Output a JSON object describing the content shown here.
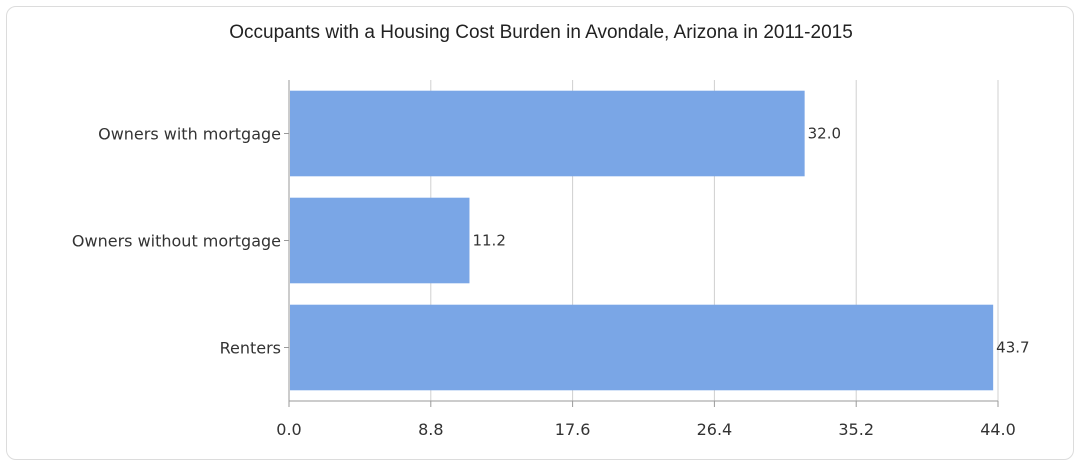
{
  "chart_data": {
    "type": "bar",
    "orientation": "horizontal",
    "title": "Occupants with a Housing Cost Burden in Avondale, Arizona in 2011-2015",
    "categories": [
      "Owners with mortgage",
      "Owners without mortgage",
      "Renters"
    ],
    "values": [
      32.0,
      11.2,
      43.7
    ],
    "value_labels": [
      "32.0",
      "11.2",
      "43.7"
    ],
    "xlim": [
      0,
      44.0
    ],
    "xticks": [
      0.0,
      8.8,
      17.6,
      26.4,
      35.2,
      44.0
    ],
    "xtick_labels": [
      "0.0",
      "8.8",
      "17.6",
      "26.4",
      "35.2",
      "44.0"
    ],
    "xlabel": "",
    "ylabel": "",
    "grid": true,
    "bar_color": "#7aa6e6",
    "grid_color": "#d0d0d0",
    "axis_color": "#9a9a9a"
  }
}
